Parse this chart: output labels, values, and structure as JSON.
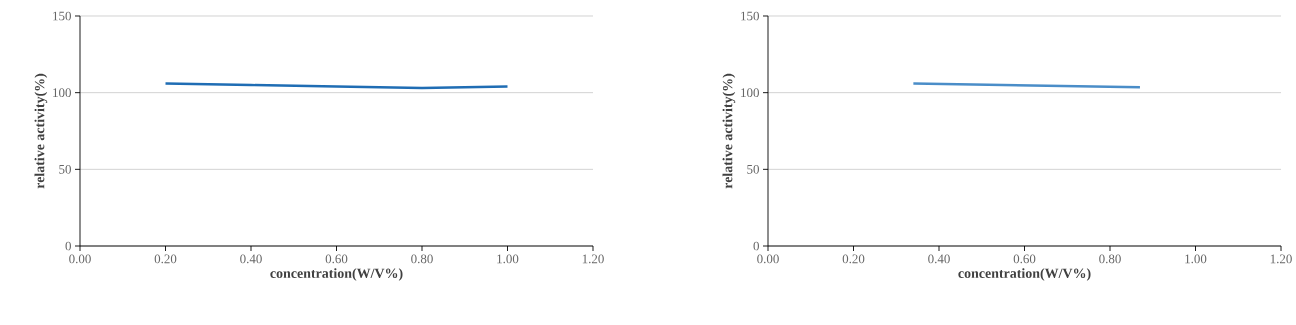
{
  "chart_data": [
    {
      "type": "line",
      "xlabel": "concentration(W/V%)",
      "ylabel": "relative activity(%)",
      "x": [
        0.2,
        0.4,
        0.6,
        0.8,
        1.0
      ],
      "series": [
        {
          "color": "#1f6db4",
          "values": [
            106,
            105,
            104,
            103,
            104
          ]
        }
      ],
      "xlim": [
        0,
        1.2
      ],
      "ylim": [
        0,
        150
      ],
      "xticks": [
        {
          "value": 0,
          "label": "0.00"
        },
        {
          "value": 0.2,
          "label": "0.20"
        },
        {
          "value": 0.4,
          "label": "0.40"
        },
        {
          "value": 0.6,
          "label": "0.60"
        },
        {
          "value": 0.8,
          "label": "0.80"
        },
        {
          "value": 1.0,
          "label": "1.00"
        },
        {
          "value": 1.2,
          "label": "1.20"
        }
      ],
      "yticks": [
        0,
        50,
        100,
        150
      ],
      "grid": "y",
      "line_style": "solid"
    },
    {
      "type": "line",
      "xlabel": "concentration(W/V%)",
      "ylabel": "relative activity(%)",
      "x": [
        0.34,
        0.87
      ],
      "series": [
        {
          "color": "#4a8dc8",
          "values": [
            106,
            103.5
          ]
        }
      ],
      "xlim": [
        0,
        1.2
      ],
      "ylim": [
        0,
        150
      ],
      "xticks": [
        {
          "value": 0,
          "label": "0.00"
        },
        {
          "value": 0.2,
          "label": "0.20"
        },
        {
          "value": 0.4,
          "label": "0.40"
        },
        {
          "value": 0.6,
          "label": "0.60"
        },
        {
          "value": 0.8,
          "label": "0.80"
        },
        {
          "value": 1.0,
          "label": "1.00"
        },
        {
          "value": 1.2,
          "label": "1.20"
        }
      ],
      "yticks": [
        0,
        50,
        100,
        150
      ],
      "grid": "y",
      "line_style": "solid"
    }
  ]
}
